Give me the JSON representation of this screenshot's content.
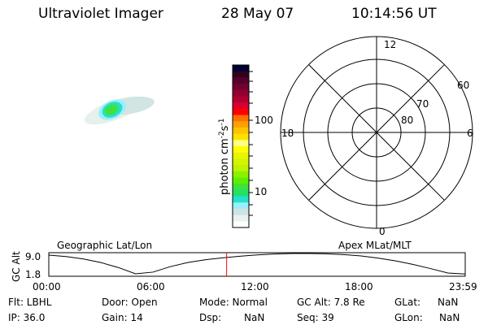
{
  "header": {
    "instrument": "Ultraviolet Imager",
    "date": "28 May 07",
    "time": "10:14:56 UT"
  },
  "colorbar": {
    "label": "photon cm",
    "label_sup1": "-2",
    "label_mid": "s",
    "label_sup2": "-1",
    "ticks": [
      "100",
      "10"
    ],
    "colors": [
      "#000033",
      "#33001f",
      "#55002a",
      "#740030",
      "#930032",
      "#b00030",
      "#d80030",
      "#ff0000",
      "#ff7000",
      "#ffa000",
      "#ffc400",
      "#ffe000",
      "#ffff80",
      "#ffff00",
      "#e8f400",
      "#d4f400",
      "#bcf400",
      "#8cf000",
      "#5cf000",
      "#40e040",
      "#24e064",
      "#24e0d0",
      "#98f0f8",
      "#d0e2e2",
      "#e8f2ee",
      "#ffffff"
    ]
  },
  "polar": {
    "labels": {
      "top": "12",
      "left": "18",
      "right": "6",
      "bottom": "0",
      "lat60": "60",
      "lat70": "70",
      "lat80": "80"
    }
  },
  "chart_data": {
    "type": "line",
    "title_left": "Geographic Lat/Lon",
    "title_right": "Apex MLat/MLT",
    "ylabel": "GC Alt",
    "yticks": [
      "9.0",
      "1.8"
    ],
    "xticks": [
      "00:00",
      "06:00",
      "12:00",
      "18:00",
      "23:59"
    ],
    "ylim": [
      1.0,
      9.6
    ],
    "xlim_hours": [
      0,
      24
    ],
    "series": [
      {
        "x_hours": [
          0,
          1,
          2,
          3,
          4,
          5,
          6,
          7,
          8,
          9,
          10,
          11,
          12,
          13,
          14,
          15,
          16,
          17,
          18,
          19,
          20,
          21,
          22,
          23,
          23.98
        ],
        "values": [
          8.7,
          8.2,
          7.3,
          6.0,
          4.2,
          1.9,
          2.5,
          4.5,
          6.0,
          7.0,
          7.7,
          8.3,
          8.8,
          9.1,
          9.3,
          9.3,
          9.2,
          8.9,
          8.4,
          7.6,
          6.6,
          5.3,
          3.8,
          2.2,
          1.8
        ]
      }
    ],
    "current_time_hours": 10.249,
    "marker_color": "#ff0000"
  },
  "footer": {
    "flt": "Flt: LBHL",
    "ip": "IP: 36.0",
    "door": "Door: Open",
    "gain": "Gain: 14",
    "mode": "Mode: Normal",
    "dsp_label": "Dsp:",
    "dsp_value": "NaN",
    "gcalt": "GC Alt: 7.8 Re",
    "seq": "Seq: 39",
    "glat_label": "GLat:",
    "glat_value": "NaN",
    "glon_label": "GLon:",
    "glon_value": "NaN"
  }
}
